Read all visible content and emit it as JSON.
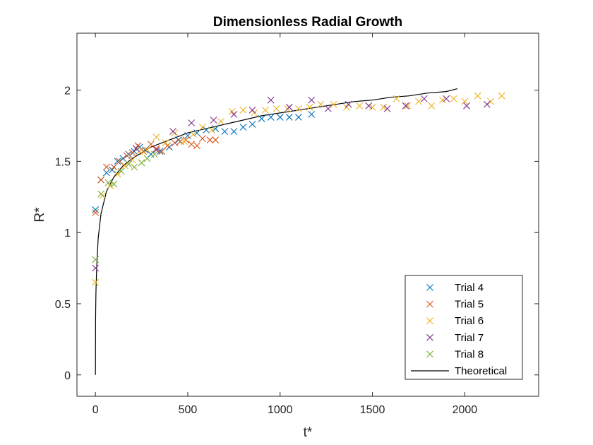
{
  "chart_data": {
    "type": "scatter",
    "title": "Dimensionless Radial Growth",
    "xlabel": "t*",
    "ylabel": "R*",
    "xlim": [
      -100,
      2400
    ],
    "ylim": [
      -0.15,
      2.4
    ],
    "xticks": [
      0,
      500,
      1000,
      1500,
      2000
    ],
    "yticks": [
      0,
      0.5,
      1,
      1.5,
      2
    ],
    "xtick_labels": [
      "0",
      "500",
      "1000",
      "1500",
      "2000"
    ],
    "ytick_labels": [
      "0",
      "0.5",
      "1",
      "1.5",
      "2"
    ],
    "grid": false,
    "legend_position": "bottom-right",
    "series": [
      {
        "name": "Trial 4",
        "marker": "x",
        "color": "#0072BD",
        "x": [
          0,
          30,
          60,
          90,
          120,
          150,
          180,
          210,
          240,
          270,
          300,
          350,
          400,
          450,
          500,
          550,
          600,
          650,
          700,
          750,
          800,
          850,
          900,
          950,
          1000,
          1050,
          1100,
          1170
        ],
        "y": [
          1.16,
          1.37,
          1.42,
          1.44,
          1.5,
          1.52,
          1.55,
          1.57,
          1.6,
          1.58,
          1.55,
          1.57,
          1.6,
          1.65,
          1.68,
          1.7,
          1.72,
          1.73,
          1.71,
          1.71,
          1.74,
          1.76,
          1.8,
          1.81,
          1.81,
          1.81,
          1.81,
          1.83
        ]
      },
      {
        "name": "Trial 5",
        "marker": "x",
        "color": "#D95319",
        "x": [
          0,
          30,
          60,
          100,
          130,
          170,
          200,
          230,
          260,
          300,
          330,
          360,
          390,
          430,
          460,
          490,
          520,
          550,
          580,
          620,
          650
        ],
        "y": [
          1.14,
          1.37,
          1.46,
          1.46,
          1.5,
          1.54,
          1.56,
          1.61,
          1.57,
          1.62,
          1.59,
          1.57,
          1.61,
          1.63,
          1.64,
          1.65,
          1.62,
          1.61,
          1.66,
          1.65,
          1.65
        ]
      },
      {
        "name": "Trial 6",
        "marker": "x",
        "color": "#EDB120",
        "x": [
          0,
          40,
          80,
          120,
          160,
          200,
          240,
          280,
          330,
          380,
          430,
          480,
          530,
          580,
          630,
          680,
          740,
          800,
          860,
          920,
          980,
          1040,
          1100,
          1160,
          1220,
          1290,
          1360,
          1430,
          1500,
          1560,
          1630,
          1690,
          1750,
          1820,
          1880,
          1940,
          2000,
          2070,
          2140,
          2200
        ],
        "y": [
          0.65,
          1.26,
          1.33,
          1.41,
          1.47,
          1.51,
          1.57,
          1.58,
          1.67,
          1.63,
          1.7,
          1.64,
          1.69,
          1.74,
          1.72,
          1.78,
          1.85,
          1.86,
          1.84,
          1.86,
          1.87,
          1.87,
          1.87,
          1.88,
          1.9,
          1.9,
          1.88,
          1.89,
          1.88,
          1.88,
          1.94,
          1.89,
          1.92,
          1.89,
          1.93,
          1.94,
          1.92,
          1.96,
          1.92,
          1.96
        ]
      },
      {
        "name": "Trial 7",
        "marker": "x",
        "color": "#7E2F8E",
        "x": [
          0,
          220,
          330,
          420,
          520,
          640,
          750,
          850,
          950,
          1050,
          1170,
          1260,
          1370,
          1480,
          1580,
          1680,
          1780,
          1900,
          2010,
          2120
        ],
        "y": [
          0.75,
          1.59,
          1.58,
          1.71,
          1.77,
          1.79,
          1.83,
          1.86,
          1.93,
          1.88,
          1.93,
          1.87,
          1.9,
          1.89,
          1.87,
          1.89,
          1.94,
          1.94,
          1.89,
          1.9
        ]
      },
      {
        "name": "Trial 8",
        "marker": "x",
        "color": "#77AC30",
        "x": [
          0,
          30,
          70,
          100,
          140,
          180,
          210,
          250,
          280,
          320
        ],
        "y": [
          0.81,
          1.27,
          1.35,
          1.34,
          1.43,
          1.48,
          1.46,
          1.49,
          1.52,
          1.55
        ]
      }
    ],
    "theoretical": {
      "name": "Theoretical",
      "color": "#000000",
      "x": [
        0,
        1,
        3,
        7,
        15,
        30,
        60,
        100,
        150,
        200,
        300,
        400,
        500,
        600,
        700,
        800,
        900,
        1000,
        1100,
        1200,
        1300,
        1400,
        1500,
        1600,
        1700,
        1800,
        1900,
        1960
      ],
      "y": [
        0.0,
        0.4,
        0.58,
        0.76,
        0.96,
        1.13,
        1.29,
        1.39,
        1.47,
        1.52,
        1.6,
        1.65,
        1.7,
        1.73,
        1.76,
        1.79,
        1.82,
        1.84,
        1.86,
        1.88,
        1.9,
        1.92,
        1.93,
        1.95,
        1.96,
        1.98,
        1.99,
        2.01
      ]
    }
  }
}
